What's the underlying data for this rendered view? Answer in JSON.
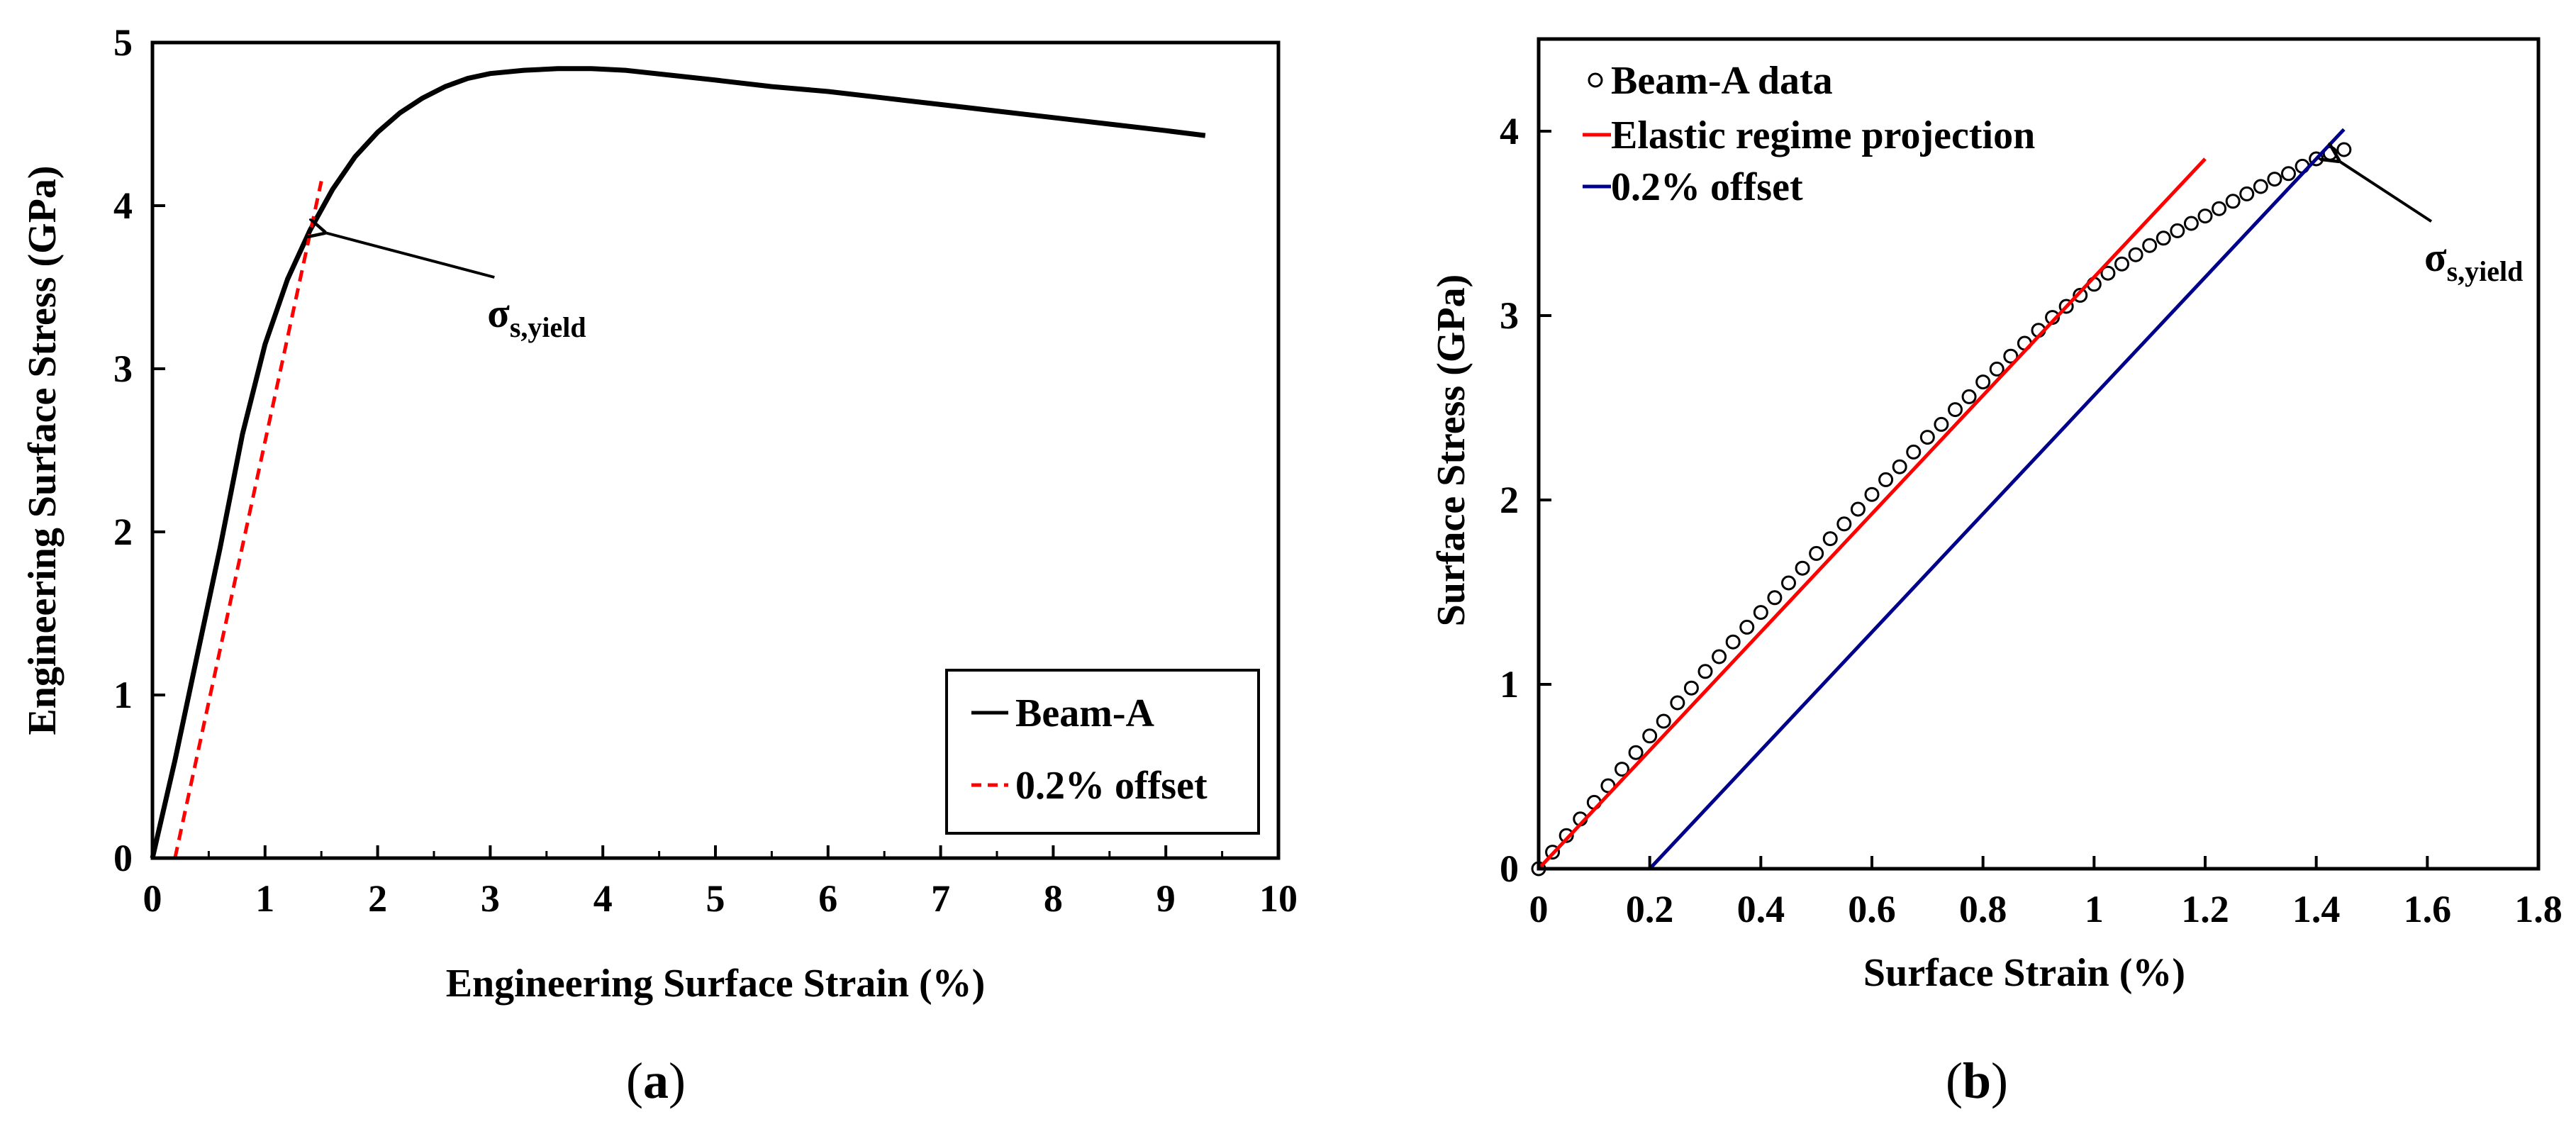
{
  "chart_data": [
    {
      "id": "a",
      "type": "line",
      "caption_letter": "a",
      "xlabel": "Engineering Surface Strain (%)",
      "ylabel": "Engineering Surface Stress (GPa)",
      "xlim": [
        0,
        10
      ],
      "ylim": [
        0,
        5
      ],
      "xticks": [
        0,
        1,
        2,
        3,
        4,
        5,
        6,
        7,
        8,
        9,
        10
      ],
      "yticks": [
        0,
        1,
        2,
        3,
        4,
        5
      ],
      "grid": false,
      "legend_position": "bottom-right",
      "series": [
        {
          "name": "Beam-A",
          "style": "solid",
          "color": "#000000",
          "x": [
            0,
            0.2,
            0.4,
            0.6,
            0.8,
            1.0,
            1.2,
            1.4,
            1.6,
            1.8,
            2.0,
            2.2,
            2.4,
            2.6,
            2.8,
            3.0,
            3.3,
            3.6,
            3.9,
            4.2,
            4.6,
            5.0,
            5.5,
            6.0,
            6.5,
            7.0,
            7.5,
            8.0,
            8.5,
            9.0,
            9.35
          ],
          "y": [
            0,
            0.6,
            1.25,
            1.9,
            2.6,
            3.15,
            3.55,
            3.85,
            4.1,
            4.3,
            4.45,
            4.57,
            4.66,
            4.73,
            4.78,
            4.81,
            4.83,
            4.84,
            4.84,
            4.83,
            4.8,
            4.77,
            4.73,
            4.7,
            4.66,
            4.62,
            4.58,
            4.54,
            4.5,
            4.46,
            4.43
          ]
        },
        {
          "name": "0.2% offset",
          "style": "dashed",
          "color": "#ff0000",
          "x": [
            0.2,
            1.5
          ],
          "y": [
            0,
            4.15
          ]
        }
      ],
      "annotations": [
        {
          "text_main": "σ",
          "text_sub": "s,yield",
          "arrow_to": [
            1.48,
            3.85
          ],
          "text_at": [
            3.1,
            3.3
          ]
        }
      ]
    },
    {
      "id": "b",
      "type": "scatter",
      "caption_letter": "b",
      "xlabel": "Surface Strain (%)",
      "ylabel": "Surface Stress (GPa)",
      "xlim": [
        0,
        1.8
      ],
      "ylim": [
        0,
        4.5
      ],
      "xticks": [
        "0",
        "0.2",
        "0.4",
        "0.6",
        "0.8",
        "1",
        "1.2",
        "1.4",
        "1.6",
        "1.8"
      ],
      "yticks": [
        0,
        1,
        2,
        3,
        4
      ],
      "grid": false,
      "legend_position": "top-left",
      "series": [
        {
          "name": "Beam-A data",
          "style": "open-circle",
          "color": "#000000",
          "x": [
            0,
            0.025,
            0.05,
            0.075,
            0.1,
            0.125,
            0.15,
            0.175,
            0.2,
            0.225,
            0.25,
            0.275,
            0.3,
            0.325,
            0.35,
            0.375,
            0.4,
            0.425,
            0.45,
            0.475,
            0.5,
            0.525,
            0.55,
            0.575,
            0.6,
            0.625,
            0.65,
            0.675,
            0.7,
            0.725,
            0.75,
            0.775,
            0.8,
            0.825,
            0.85,
            0.875,
            0.9,
            0.925,
            0.95,
            0.975,
            1.0,
            1.025,
            1.05,
            1.075,
            1.1,
            1.125,
            1.15,
            1.175,
            1.2,
            1.225,
            1.25,
            1.275,
            1.3,
            1.325,
            1.35,
            1.375,
            1.4,
            1.425,
            1.45
          ],
          "y": [
            0,
            0.09,
            0.18,
            0.27,
            0.36,
            0.45,
            0.54,
            0.63,
            0.72,
            0.8,
            0.9,
            0.98,
            1.07,
            1.15,
            1.23,
            1.31,
            1.39,
            1.47,
            1.55,
            1.63,
            1.71,
            1.79,
            1.87,
            1.95,
            2.03,
            2.11,
            2.18,
            2.26,
            2.34,
            2.41,
            2.49,
            2.56,
            2.64,
            2.71,
            2.78,
            2.85,
            2.92,
            2.99,
            3.05,
            3.11,
            3.17,
            3.23,
            3.28,
            3.33,
            3.38,
            3.42,
            3.46,
            3.5,
            3.54,
            3.58,
            3.62,
            3.66,
            3.7,
            3.74,
            3.77,
            3.81,
            3.85,
            3.88,
            3.9
          ]
        },
        {
          "name": "Elastic regime projection",
          "style": "solid",
          "color": "#ff0000",
          "x": [
            0,
            1.2
          ],
          "y": [
            0,
            3.85
          ]
        },
        {
          "name": "0.2% offset",
          "style": "solid",
          "color": "#00008b",
          "x": [
            0.2,
            1.45
          ],
          "y": [
            0,
            4.01
          ]
        }
      ],
      "annotations": [
        {
          "text_main": "σ",
          "text_sub": "s,yield",
          "arrow_to": [
            1.43,
            3.85
          ],
          "text_at": [
            1.62,
            3.28
          ]
        }
      ]
    }
  ]
}
